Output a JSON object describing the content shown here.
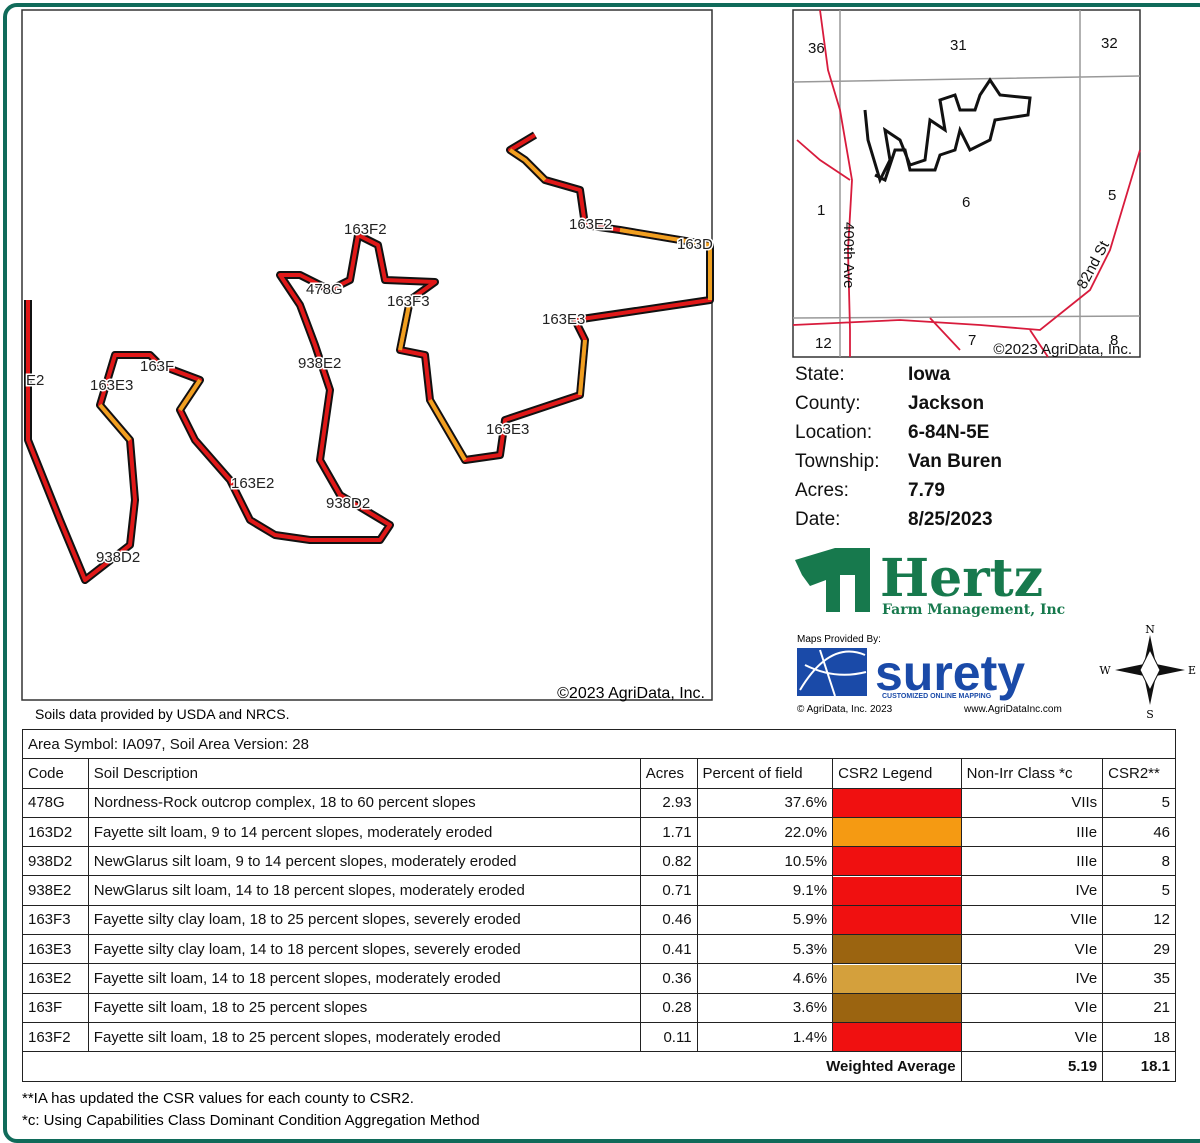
{
  "map": {
    "labels": [
      "E2",
      "163E3",
      "163F",
      "938D2",
      "163E2",
      "938E2",
      "938D2",
      "478G",
      "163F2",
      "163F3",
      "163E3",
      "163E3",
      "163E2",
      "163D"
    ],
    "copyright": "©2023 AgriData, Inc."
  },
  "source_note": "Soils data provided by USDA and NRCS.",
  "inset": {
    "labels": [
      "36",
      "31",
      "32",
      "1",
      "6",
      "5",
      "12",
      "7",
      "8"
    ],
    "roads": [
      "400th Ave",
      "82nd St"
    ],
    "copyright": "©2023 AgriData, Inc."
  },
  "info": [
    [
      "State:",
      "Iowa"
    ],
    [
      "County:",
      "Jackson"
    ],
    [
      "Location:",
      "6-84N-5E"
    ],
    [
      "Township:",
      "Van Buren"
    ],
    [
      "Acres:",
      "7.79"
    ],
    [
      "Date:",
      "8/25/2023"
    ]
  ],
  "logos": {
    "hertz": "Hertz",
    "hertz_sub": "Farm Management, Inc",
    "provided_by": "Maps Provided By:",
    "surety": "surety",
    "surety_sub": "CUSTOMIZED ONLINE MAPPING",
    "surety_copy": "© AgriData, Inc. 2023",
    "surety_url": "www.AgriDataInc.com"
  },
  "compass": {
    "n": "N",
    "s": "S",
    "e": "E",
    "w": "W"
  },
  "table": {
    "title": "Area Symbol: IA097, Soil Area Version: 28",
    "headers": [
      "Code",
      "Soil Description",
      "Acres",
      "Percent of field",
      "CSR2 Legend",
      "Non-Irr Class *c",
      "CSR2**"
    ],
    "rows": [
      [
        "478G",
        "Nordness-Rock outcrop complex, 18 to 60 percent slopes",
        "2.93",
        "37.6%",
        "#f01010",
        "VIIs",
        "5"
      ],
      [
        "163D2",
        "Fayette silt loam, 9 to 14 percent slopes, moderately eroded",
        "1.71",
        "22.0%",
        "#f59a12",
        "IIIe",
        "46"
      ],
      [
        "938D2",
        "NewGlarus silt loam, 9 to 14 percent slopes, moderately eroded",
        "0.82",
        "10.5%",
        "#f01010",
        "IIIe",
        "8"
      ],
      [
        "938E2",
        "NewGlarus silt loam, 14 to 18 percent slopes, moderately eroded",
        "0.71",
        "9.1%",
        "#f01010",
        "IVe",
        "5"
      ],
      [
        "163F3",
        "Fayette silty clay loam, 18 to 25 percent slopes, severely eroded",
        "0.46",
        "5.9%",
        "#f01010",
        "VIIe",
        "12"
      ],
      [
        "163E3",
        "Fayette silty clay loam, 14 to 18 percent slopes, severely eroded",
        "0.41",
        "5.3%",
        "#9b6410",
        "VIe",
        "29"
      ],
      [
        "163E2",
        "Fayette silt loam, 14 to 18  percent slopes, moderately eroded",
        "0.36",
        "4.6%",
        "#d4a03c",
        "IVe",
        "35"
      ],
      [
        "163F",
        "Fayette silt loam, 18 to 25 percent slopes",
        "0.28",
        "3.6%",
        "#9b6410",
        "VIe",
        "21"
      ],
      [
        "163F2",
        "Fayette silt loam, 18 to 25 percent slopes, moderately eroded",
        "0.11",
        "1.4%",
        "#f01010",
        "VIe",
        "18"
      ]
    ],
    "weighted_label": "Weighted Average",
    "weighted_class": "5.19",
    "weighted_csr2": "18.1"
  },
  "footnotes": [
    "**IA has updated the CSR values for each county to CSR2.",
    "*c:  Using Capabilities Class Dominant Condition Aggregation Method"
  ]
}
